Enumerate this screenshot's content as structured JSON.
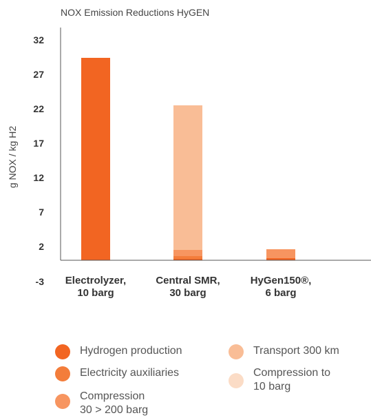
{
  "chart_data": {
    "type": "bar",
    "stacked": true,
    "title": "NOX Emission Reductions HyGEN",
    "xlabel": "",
    "ylabel": "g NOX / kg H2",
    "ylim": [
      -3,
      32
    ],
    "yticks": [
      "32",
      "27",
      "22",
      "17",
      "12",
      "7",
      "2",
      "-3"
    ],
    "categories": [
      "Electrolyzer,\n10 barg",
      "Central SMR,\n30 barg",
      "HyGen150®,\n6 barg"
    ],
    "series": [
      {
        "name": "Hydrogen production",
        "color": "#f26522",
        "values": [
          29.4,
          0.2,
          0.3
        ]
      },
      {
        "name": "Electricity auxiliaries",
        "color": "#f37d3b",
        "values": [
          0,
          0.4,
          0
        ]
      },
      {
        "name": "Compression\n30 > 200 barg",
        "color": "#f79560",
        "values": [
          0,
          0.9,
          1.3
        ]
      },
      {
        "name": "Transport 300 km",
        "color": "#f9bd96",
        "values": [
          0,
          21.0,
          0
        ]
      },
      {
        "name": "Compression to\n10 barg",
        "color": "#fbdcc6",
        "values": [
          0,
          0,
          0
        ]
      }
    ],
    "grid": false,
    "legend_position": "bottom"
  }
}
